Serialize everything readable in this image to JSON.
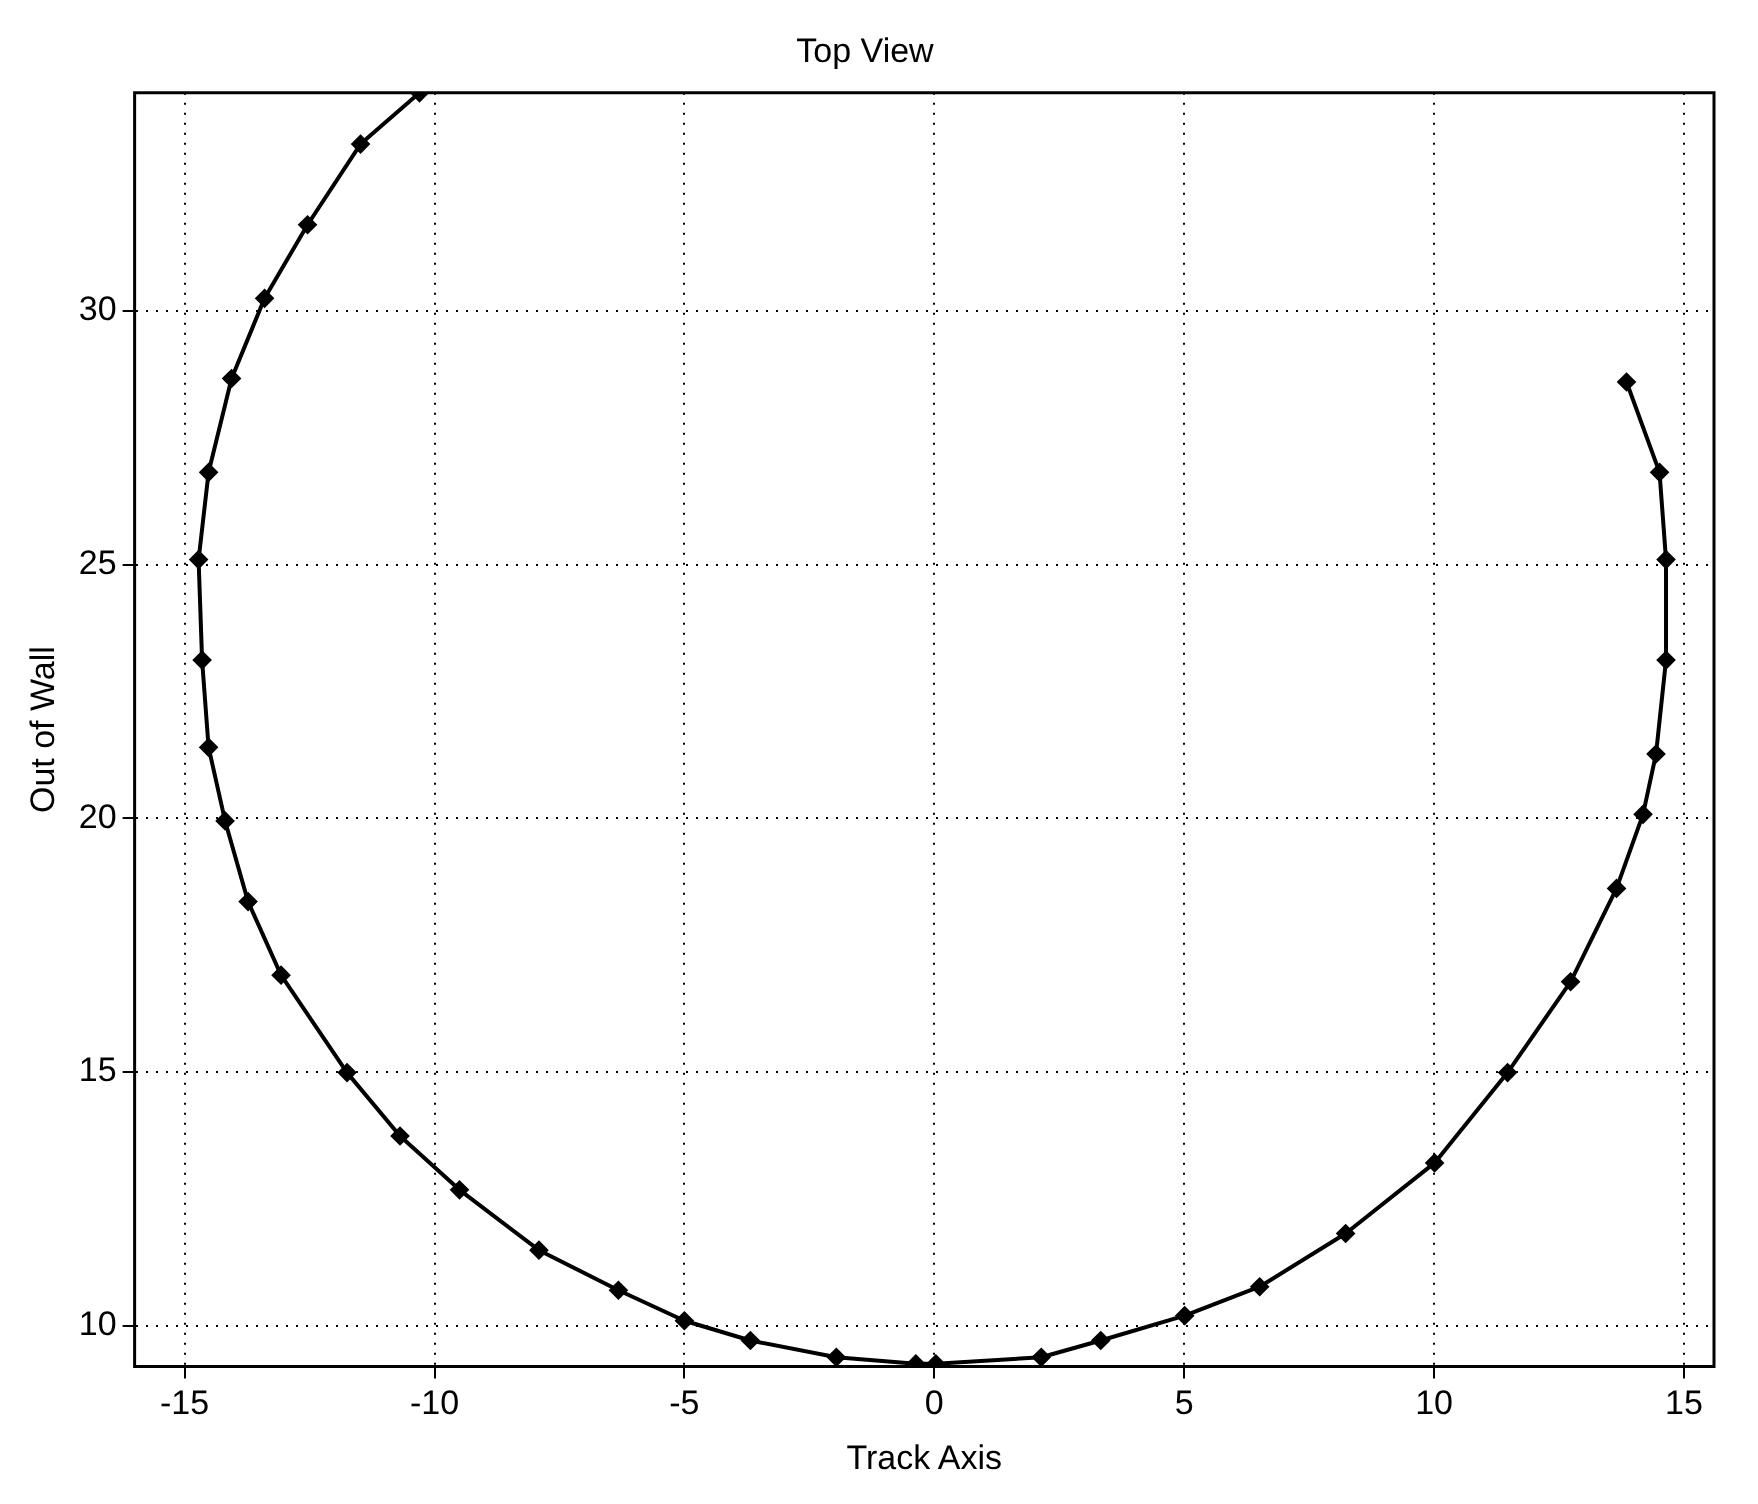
{
  "chart_data": {
    "type": "line",
    "title": "Top View",
    "xlabel": "Track Axis",
    "ylabel": "Out of Wall",
    "xlim": [
      -16,
      15.6
    ],
    "ylim": [
      9.2,
      34.3
    ],
    "xticks": [
      -15,
      -10,
      -5,
      0,
      5,
      10,
      15
    ],
    "yticks": [
      10,
      15,
      20,
      25,
      30
    ],
    "grid": true,
    "marker": "diamond",
    "line_style": "solid",
    "series": [
      {
        "color": "#000000",
        "x": [
          -10.3,
          -11.48,
          -12.54,
          -13.4,
          -14.06,
          -14.52,
          -14.72,
          -14.65,
          -14.52,
          -14.19,
          -13.73,
          -13.07,
          -11.75,
          -10.69,
          -9.5,
          -7.91,
          -6.32,
          -5.0,
          -3.68,
          -1.96,
          -0.37,
          0.03,
          2.14,
          3.33,
          5.01,
          6.51,
          8.23,
          10.01,
          11.47,
          12.73,
          13.65,
          14.18,
          14.44,
          14.64,
          14.64,
          14.51,
          13.85
        ],
        "values": [
          34.3,
          33.29,
          31.7,
          30.25,
          28.67,
          26.82,
          25.1,
          23.12,
          21.4,
          19.95,
          18.36,
          16.91,
          14.99,
          13.74,
          12.68,
          11.49,
          10.7,
          10.1,
          9.71,
          9.38,
          9.25,
          9.25,
          9.38,
          9.71,
          10.2,
          10.77,
          11.82,
          13.21,
          14.99,
          16.78,
          18.62,
          20.08,
          21.27,
          23.12,
          25.1,
          26.82,
          28.6
        ]
      }
    ]
  }
}
